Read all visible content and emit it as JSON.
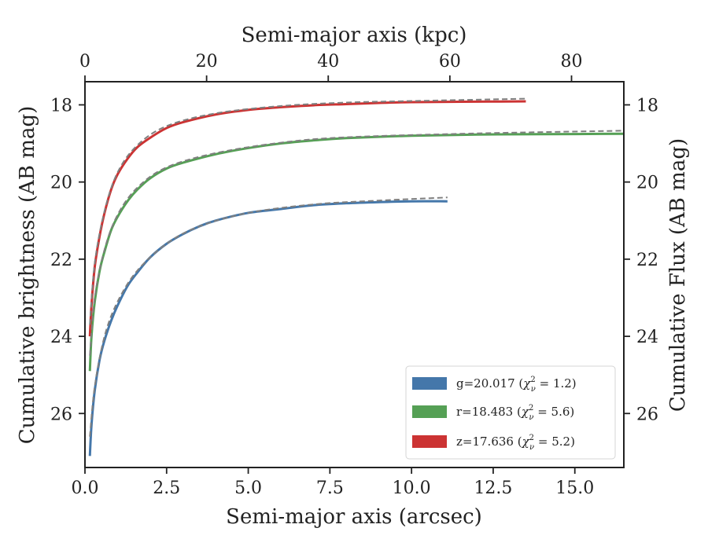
{
  "chart_data": {
    "type": "line",
    "xlabel": "Semi-major axis (arcsec)",
    "ylabel": "Cumulative brightness (AB mag)",
    "x2label": "Semi-major axis (kpc)",
    "y2label": "Cumulative Flux (AB mag)",
    "xlim": [
      0,
      16.5
    ],
    "ylim": [
      27.4,
      17.4
    ],
    "y_inverted": true,
    "x2lim": [
      0,
      88.6
    ],
    "xticks": [
      "0.0",
      "2.5",
      "5.0",
      "7.5",
      "10.0",
      "12.5",
      "15.0"
    ],
    "yticks": [
      "18",
      "20",
      "22",
      "24",
      "26"
    ],
    "x2ticks": [
      "0",
      "20",
      "40",
      "60",
      "80"
    ],
    "grid": false,
    "legend": {
      "placement": "lower-right"
    },
    "series": [
      {
        "name": "g=20.017 (χ²ν = 1.2)",
        "label_prefix": "g=20.017 (",
        "label_chi": "χ",
        "label_sup": "2",
        "label_sub": "ν",
        "label_suffix": " = 1.2)",
        "color": "#4477aa",
        "x": [
          0.15,
          0.2,
          0.3,
          0.45,
          0.6,
          0.8,
          1.0,
          1.3,
          1.6,
          2.0,
          2.5,
          3.0,
          3.5,
          4.0,
          5.0,
          6.0,
          7.0,
          8.0,
          9.0,
          10.0,
          11.1
        ],
        "values": [
          27.1,
          26.3,
          25.4,
          24.6,
          24.1,
          23.6,
          23.2,
          22.7,
          22.35,
          21.95,
          21.6,
          21.35,
          21.15,
          21.0,
          20.8,
          20.7,
          20.6,
          20.55,
          20.52,
          20.5,
          20.5
        ],
        "model_x": [
          0.15,
          0.3,
          0.6,
          1.0,
          1.6,
          2.5,
          3.5,
          5.0,
          7.0,
          9.0,
          11.1
        ],
        "model_values": [
          26.6,
          25.3,
          24.0,
          23.1,
          22.3,
          21.6,
          21.15,
          20.8,
          20.58,
          20.48,
          20.4
        ]
      },
      {
        "name": "r=18.483 (χ²ν = 5.6)",
        "label_prefix": "r=18.483 (",
        "label_chi": "χ",
        "label_sup": "2",
        "label_sub": "ν",
        "label_suffix": " = 5.6)",
        "color": "#55a055",
        "x": [
          0.15,
          0.2,
          0.3,
          0.45,
          0.6,
          0.8,
          1.0,
          1.3,
          1.6,
          2.0,
          2.5,
          3.0,
          4.0,
          5.0,
          6.0,
          7.0,
          8.0,
          10.0,
          12.0,
          14.0,
          16.5
        ],
        "values": [
          24.9,
          24.0,
          23.1,
          22.3,
          21.8,
          21.25,
          20.9,
          20.5,
          20.2,
          19.9,
          19.65,
          19.5,
          19.28,
          19.12,
          19.0,
          18.92,
          18.86,
          18.8,
          18.77,
          18.76,
          18.75
        ],
        "model_x": [
          0.15,
          0.3,
          0.6,
          1.0,
          1.6,
          2.5,
          4.0,
          6.0,
          8.0,
          12.0,
          16.5
        ],
        "model_values": [
          24.5,
          23.0,
          21.75,
          20.85,
          20.15,
          19.62,
          19.25,
          18.98,
          18.84,
          18.74,
          18.67
        ]
      },
      {
        "name": "z=17.636 (χ²ν = 5.2)",
        "label_prefix": "z=17.636 (",
        "label_chi": "χ",
        "label_sup": "2",
        "label_sub": "ν",
        "label_suffix": " = 5.2)",
        "color": "#cc3333",
        "x": [
          0.15,
          0.2,
          0.3,
          0.45,
          0.6,
          0.8,
          1.0,
          1.3,
          1.6,
          2.0,
          2.5,
          3.0,
          4.0,
          5.0,
          6.0,
          7.0,
          8.0,
          9.0,
          10.0,
          11.5,
          13.5
        ],
        "values": [
          24.0,
          23.2,
          22.2,
          21.4,
          20.8,
          20.2,
          19.8,
          19.4,
          19.1,
          18.85,
          18.6,
          18.45,
          18.25,
          18.13,
          18.06,
          18.01,
          17.98,
          17.95,
          17.93,
          17.92,
          17.91
        ],
        "model_x": [
          0.15,
          0.3,
          0.6,
          1.0,
          1.6,
          2.5,
          4.0,
          6.0,
          8.0,
          10.0,
          13.5
        ],
        "model_values": [
          23.7,
          22.1,
          20.75,
          19.75,
          19.05,
          18.55,
          18.22,
          18.03,
          17.94,
          17.9,
          17.84
        ]
      }
    ]
  }
}
